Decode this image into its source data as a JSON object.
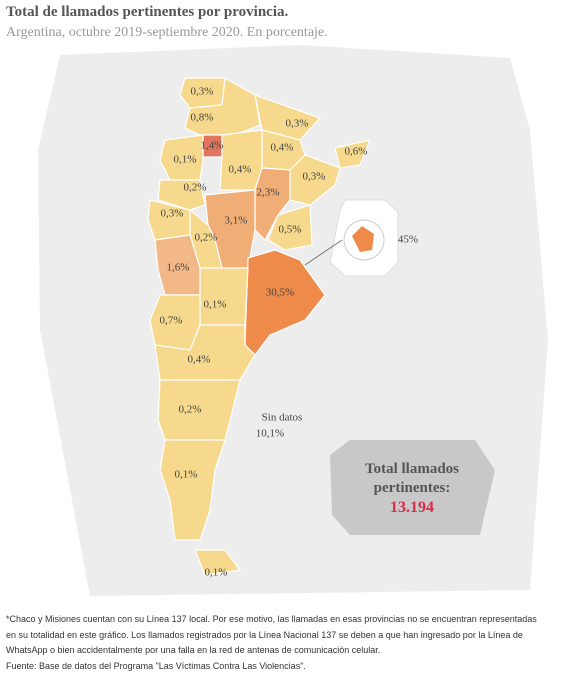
{
  "header": {
    "title": "Total de llamados pertinentes por provincia.",
    "subtitle": "Argentina, octubre 2019-septiembre 2020. En porcentaje."
  },
  "regions": [
    {
      "value": 0.3,
      "label": "0,3%",
      "color": "#f6d98d"
    },
    {
      "value": 0.8,
      "label": "0,8%",
      "color": "#f6d98d"
    },
    {
      "value": 1.4,
      "label": "1,4%",
      "color": "#e0745e"
    },
    {
      "value": 0.3,
      "label": "0,3%",
      "color": "#f6d98d"
    },
    {
      "value": 0.4,
      "label": "0,4%",
      "color": "#f6d98d"
    },
    {
      "value": 0.6,
      "label": "0,6%",
      "color": "#f6d98d"
    },
    {
      "value": 0.1,
      "label": "0,1%",
      "color": "#f6d98d"
    },
    {
      "value": 0.4,
      "label": "0,4%",
      "color": "#f6d98d"
    },
    {
      "value": 0.3,
      "label": "0,3%",
      "color": "#f6d98d"
    },
    {
      "value": 0.2,
      "label": "0,2%",
      "color": "#f6d98d"
    },
    {
      "value": 2.3,
      "label": "2,3%",
      "color": "#f0ad76"
    },
    {
      "value": 0.3,
      "label": "0,3%",
      "color": "#f6d98d"
    },
    {
      "value": 3.1,
      "label": "3,1%",
      "color": "#f0ad76"
    },
    {
      "value": 0.5,
      "label": "0,5%",
      "color": "#f6d98d"
    },
    {
      "value": 0.2,
      "label": "0,2%",
      "color": "#f6d98d"
    },
    {
      "value": 1.6,
      "label": "1,6%",
      "color": "#f3b887"
    },
    {
      "value": 30.5,
      "label": "30,5%",
      "color": "#ee8a4a"
    },
    {
      "value": 0.1,
      "label": "0,1%",
      "color": "#f6d98d"
    },
    {
      "value": 0.7,
      "label": "0,7%",
      "color": "#f6d98d"
    },
    {
      "value": 0.4,
      "label": "0,4%",
      "color": "#f6d98d"
    },
    {
      "value": 0.2,
      "label": "0,2%",
      "color": "#f6d98d"
    },
    {
      "value": 0.1,
      "label": "0,1%",
      "color": "#f6d98d"
    },
    {
      "value": 0.1,
      "label": "0,1%",
      "color": "#f6d98d"
    }
  ],
  "inset": {
    "value": 45,
    "label": "45%",
    "color": "#ee8a4a"
  },
  "no_data": {
    "title": "Sin datos",
    "value": 10.1,
    "label": "10,1%"
  },
  "total": {
    "title": "Total llamados pertinentes:",
    "value": "13.194"
  },
  "notes": [
    "*Chaco y Misiones cuentan con su Línea 137 local. Por ese motivo, las llamadas en esas provincias no se encuentran representadas",
    "en su totalidad en este gráfico. Los llamados registrados por la Línea Nacional 137 se deben a que han ingresado por la Línea de",
    "WhatsApp o bien accidentalmente por una falla en la red de antenas de comunicación celular.",
    "Fuente: Base de datos del Programa \"Las Víctimas Contra Las Violencias\"."
  ]
}
